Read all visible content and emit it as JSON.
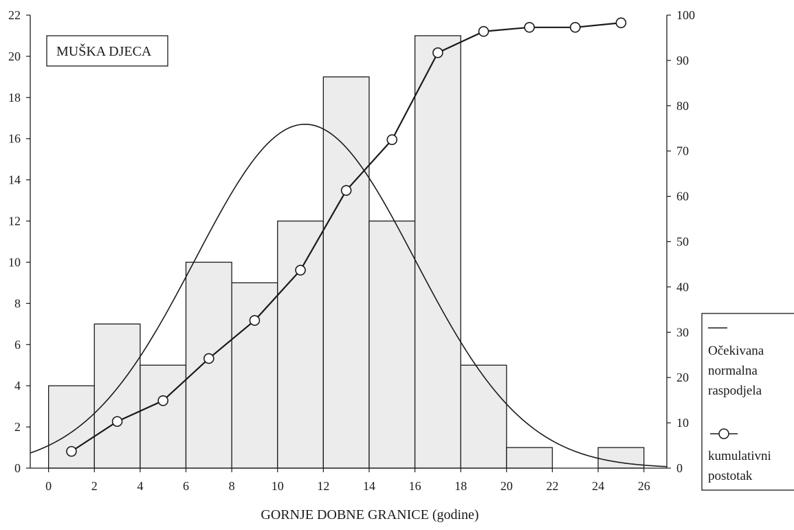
{
  "chart_data": {
    "type": "bar",
    "title_box": "MUŠKA DJECA",
    "xlabel": "GORNJE DOBNE GRANICE (godine)",
    "ylabel_left": "",
    "ylabel_right": "",
    "x_ticks": [
      0,
      2,
      4,
      6,
      8,
      10,
      12,
      14,
      16,
      18,
      20,
      22,
      24,
      26
    ],
    "xlim": [
      -0.8,
      27
    ],
    "y_left_ticks": [
      0,
      2,
      4,
      6,
      8,
      10,
      12,
      14,
      16,
      18,
      20,
      22
    ],
    "y_left_lim": [
      0,
      22
    ],
    "y_right_ticks": [
      0,
      10,
      20,
      30,
      40,
      50,
      60,
      70,
      80,
      90,
      100
    ],
    "y_right_lim": [
      0,
      100
    ],
    "bars": {
      "edges": [
        0,
        2,
        4,
        6,
        8,
        10,
        12,
        14,
        16,
        18,
        20,
        22,
        24,
        26
      ],
      "values": [
        4,
        7,
        5,
        10,
        9,
        12,
        19,
        12,
        21,
        5,
        1,
        0,
        1
      ]
    },
    "normal_curve": {
      "mean": 11.2,
      "sd": 4.8,
      "peak": 16.7,
      "x_start": -0.8,
      "x_end": 27
    },
    "cumulative_percent": {
      "x": [
        1,
        3,
        5,
        7,
        9,
        11,
        13,
        15,
        17,
        19,
        21,
        23,
        25
      ],
      "values": [
        3.7,
        10.3,
        14.9,
        24.2,
        32.6,
        43.7,
        61.3,
        72.5,
        91.7,
        96.4,
        97.3,
        97.3,
        98.3
      ]
    },
    "legend": {
      "position": "bottom-right",
      "items": [
        {
          "label_lines": [
            "Očekivana",
            "normalna",
            "raspodjela"
          ]
        },
        {
          "label_lines": [
            "kumulativni",
            "postotak"
          ]
        }
      ]
    },
    "colors": {
      "bar_fill": "#ececec",
      "bar_stroke": "#1a1a1a",
      "line": "#1a1a1a",
      "marker_fill": "#ffffff"
    }
  }
}
